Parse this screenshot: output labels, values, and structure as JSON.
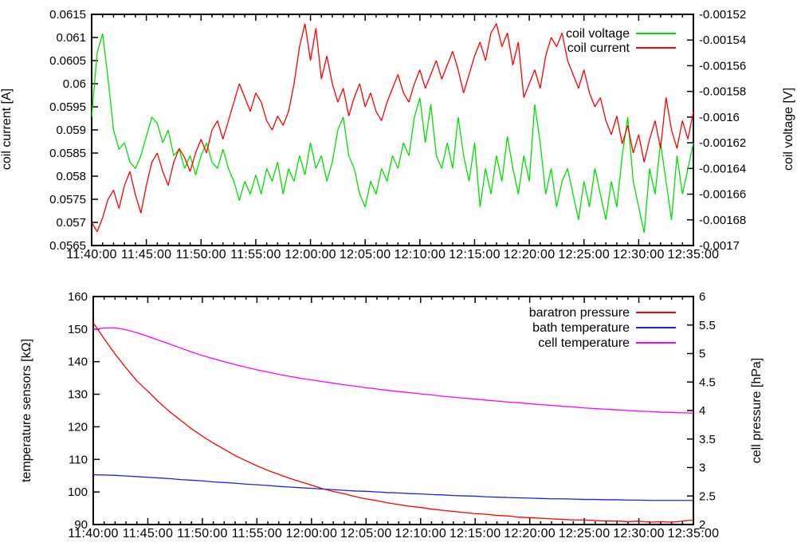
{
  "chart_data": [
    {
      "type": "line",
      "position": "top",
      "title": "",
      "background": "#ffffff",
      "axis_color": "#000000",
      "x_axis": {
        "start": "11:40:00",
        "end": "12:35:00",
        "major_interval_min": 5,
        "minor_interval_min": 1,
        "tick_labels": [
          "11:40:00",
          "11:45:00",
          "11:50:00",
          "11:55:00",
          "12:00:00",
          "12:05:00",
          "12:10:00",
          "12:15:00",
          "12:20:00",
          "12:25:00",
          "12:30:00",
          "12:35:00"
        ]
      },
      "y_left": {
        "label": "coil current [A]",
        "range": [
          0.0565,
          0.0615
        ],
        "ticks": [
          0.0565,
          0.057,
          0.0575,
          0.058,
          0.0585,
          0.059,
          0.0595,
          0.06,
          0.0605,
          0.061,
          0.0615
        ],
        "tick_labels": [
          "0.0565",
          "0.057",
          "0.0575",
          "0.058",
          "0.0585",
          "0.059",
          "0.0595",
          "0.06",
          "0.0605",
          "0.061",
          "0.0615"
        ]
      },
      "y_right": {
        "label": "coil voltage [V]",
        "range": [
          -0.0017,
          -0.00152
        ],
        "ticks": [
          -0.0017,
          -0.00168,
          -0.00166,
          -0.00164,
          -0.00162,
          -0.0016,
          -0.00158,
          -0.00156,
          -0.00154,
          -0.00152
        ],
        "tick_labels": [
          "-0.0017",
          "-0.00168",
          "-0.00166",
          "-0.00164",
          "-0.00162",
          "-0.0016",
          "-0.00158",
          "-0.00156",
          "-0.00154",
          "-0.00152"
        ]
      },
      "legend": {
        "position": "top-right",
        "entries": [
          {
            "label": "coil voltage",
            "color": "#00e000"
          },
          {
            "label": "coil current",
            "color": "#ff0000"
          }
        ]
      },
      "series": [
        {
          "name": "coil voltage",
          "axis": "right",
          "color": "#00e000",
          "sample_interval_min": 0.5,
          "values": [
            -0.0016,
            -0.00155,
            -0.001535,
            -0.00157,
            -0.00161,
            -0.001625,
            -0.00162,
            -0.001635,
            -0.00164,
            -0.00163,
            -0.001615,
            -0.0016,
            -0.001605,
            -0.00162,
            -0.00161,
            -0.00163,
            -0.001625,
            -0.00164,
            -0.00163,
            -0.001645,
            -0.00163,
            -0.00162,
            -0.001635,
            -0.00164,
            -0.001625,
            -0.00164,
            -0.00165,
            -0.001665,
            -0.00165,
            -0.00166,
            -0.001645,
            -0.00166,
            -0.00164,
            -0.00165,
            -0.001635,
            -0.00166,
            -0.00164,
            -0.00165,
            -0.00163,
            -0.001645,
            -0.00162,
            -0.00164,
            -0.00163,
            -0.00165,
            -0.001635,
            -0.00161,
            -0.0016,
            -0.00163,
            -0.00164,
            -0.00166,
            -0.00167,
            -0.00165,
            -0.00166,
            -0.00164,
            -0.00165,
            -0.00163,
            -0.00164,
            -0.00162,
            -0.00163,
            -0.0016,
            -0.001585,
            -0.00162,
            -0.00159,
            -0.00163,
            -0.00164,
            -0.00162,
            -0.00164,
            -0.0016,
            -0.00163,
            -0.00165,
            -0.00162,
            -0.00167,
            -0.00164,
            -0.00166,
            -0.00163,
            -0.00165,
            -0.001615,
            -0.00164,
            -0.00166,
            -0.00163,
            -0.00165,
            -0.00159,
            -0.00162,
            -0.00166,
            -0.00164,
            -0.00167,
            -0.00165,
            -0.00164,
            -0.00166,
            -0.00168,
            -0.00165,
            -0.00167,
            -0.00164,
            -0.00166,
            -0.00168,
            -0.00165,
            -0.00167,
            -0.00163,
            -0.0016,
            -0.00165,
            -0.00167,
            -0.00169,
            -0.00164,
            -0.00166,
            -0.00162,
            -0.00165,
            -0.00168,
            -0.00163,
            -0.00166,
            -0.00164,
            -0.00162
          ]
        },
        {
          "name": "coil current",
          "axis": "left",
          "color": "#ff0000",
          "sample_interval_min": 0.5,
          "values": [
            0.057,
            0.0568,
            0.0571,
            0.0575,
            0.0577,
            0.0573,
            0.0578,
            0.0581,
            0.0576,
            0.0572,
            0.0578,
            0.0583,
            0.0585,
            0.0581,
            0.0578,
            0.0583,
            0.0586,
            0.0584,
            0.0581,
            0.0585,
            0.0588,
            0.0585,
            0.059,
            0.0592,
            0.0588,
            0.0592,
            0.0596,
            0.06,
            0.0597,
            0.0594,
            0.0598,
            0.0596,
            0.0592,
            0.059,
            0.0593,
            0.0591,
            0.0594,
            0.06,
            0.0608,
            0.0613,
            0.0605,
            0.0612,
            0.0601,
            0.0606,
            0.06,
            0.0596,
            0.0599,
            0.0593,
            0.0597,
            0.06,
            0.0595,
            0.0598,
            0.0594,
            0.0592,
            0.0596,
            0.0599,
            0.0602,
            0.0598,
            0.0596,
            0.06,
            0.0603,
            0.0599,
            0.0602,
            0.0605,
            0.0601,
            0.0604,
            0.0607,
            0.0603,
            0.0598,
            0.0602,
            0.0606,
            0.0609,
            0.0605,
            0.0611,
            0.0613,
            0.0608,
            0.0611,
            0.0604,
            0.0609,
            0.0597,
            0.06,
            0.0603,
            0.0599,
            0.0606,
            0.061,
            0.0608,
            0.0611,
            0.0605,
            0.0602,
            0.0599,
            0.0603,
            0.0598,
            0.0595,
            0.0597,
            0.0592,
            0.0589,
            0.0593,
            0.0587,
            0.0591,
            0.0585,
            0.0589,
            0.0583,
            0.0588,
            0.0592,
            0.0586,
            0.0597,
            0.059,
            0.0586,
            0.0592,
            0.0588,
            0.0594
          ]
        }
      ]
    },
    {
      "type": "line",
      "position": "bottom",
      "title": "",
      "background": "#ffffff",
      "axis_color": "#000000",
      "x_axis": {
        "start": "11:40:00",
        "end": "12:35:00",
        "major_interval_min": 5,
        "minor_interval_min": 1,
        "tick_labels": [
          "11:40:00",
          "11:45:00",
          "11:50:00",
          "11:55:00",
          "12:00:00",
          "12:05:00",
          "12:10:00",
          "12:15:00",
          "12:20:00",
          "12:25:00",
          "12:30:00",
          "12:35:00"
        ]
      },
      "y_left": {
        "label": "temperature sensors [kΩ]",
        "range": [
          90,
          160
        ],
        "ticks": [
          90,
          100,
          110,
          120,
          130,
          140,
          150,
          160
        ],
        "tick_labels": [
          "90",
          "100",
          "110",
          "120",
          "130",
          "140",
          "150",
          "160"
        ]
      },
      "y_right": {
        "label": "cell pressure [hPa]",
        "range": [
          2,
          6
        ],
        "ticks": [
          2,
          2.5,
          3,
          3.5,
          4,
          4.5,
          5,
          5.5,
          6
        ],
        "tick_labels": [
          "2",
          "2.5",
          "3",
          "3.5",
          "4",
          "4.5",
          "5",
          "5.5",
          "6"
        ]
      },
      "legend": {
        "position": "top-right",
        "entries": [
          {
            "label": "baratron pressure",
            "color": "#ff0000"
          },
          {
            "label": "bath temperature",
            "color": "#2020e0"
          },
          {
            "label": "cell temperature",
            "color": "#ff00ff"
          }
        ]
      },
      "series": [
        {
          "name": "baratron pressure",
          "axis": "right",
          "color": "#ff0000",
          "sample_interval_min": 1,
          "values": [
            5.54,
            5.26,
            4.99,
            4.75,
            4.52,
            4.34,
            4.15,
            3.98,
            3.83,
            3.68,
            3.55,
            3.43,
            3.32,
            3.21,
            3.12,
            3.03,
            2.95,
            2.88,
            2.81,
            2.75,
            2.69,
            2.63,
            2.58,
            2.54,
            2.49,
            2.45,
            2.42,
            2.38,
            2.35,
            2.32,
            2.3,
            2.27,
            2.25,
            2.23,
            2.21,
            2.19,
            2.18,
            2.16,
            2.15,
            2.13,
            2.12,
            2.11,
            2.1,
            2.09,
            2.08,
            2.08,
            2.07,
            2.06,
            2.06,
            2.05,
            2.06,
            2.04,
            2.05,
            2.04,
            2.06,
            2.08
          ]
        },
        {
          "name": "bath temperature",
          "axis": "left",
          "color": "#2020e0",
          "sample_interval_min": 1,
          "values": [
            105.3,
            105.2,
            105.1,
            104.9,
            104.7,
            104.5,
            104.3,
            104.1,
            103.8,
            103.6,
            103.4,
            103.1,
            102.9,
            102.7,
            102.4,
            102.2,
            102.0,
            101.7,
            101.5,
            101.3,
            101.1,
            100.9,
            100.7,
            100.5,
            100.3,
            100.2,
            100.0,
            99.8,
            99.7,
            99.5,
            99.4,
            99.2,
            99.1,
            98.9,
            98.8,
            98.7,
            98.5,
            98.4,
            98.3,
            98.2,
            98.1,
            98.0,
            97.9,
            97.9,
            97.8,
            97.7,
            97.7,
            97.6,
            97.6,
            97.5,
            97.5,
            97.4,
            97.4,
            97.4,
            97.4,
            97.4
          ]
        },
        {
          "name": "cell temperature",
          "axis": "left",
          "color": "#ff00ff",
          "sample_interval_min": 1,
          "values": [
            150.0,
            150.3,
            150.4,
            149.8,
            148.9,
            147.8,
            146.6,
            145.4,
            144.2,
            143.0,
            141.9,
            140.9,
            140.0,
            139.1,
            138.3,
            137.5,
            136.8,
            136.1,
            135.5,
            134.9,
            134.4,
            133.9,
            133.4,
            132.9,
            132.5,
            132.0,
            131.6,
            131.2,
            130.8,
            130.5,
            130.1,
            129.8,
            129.4,
            129.1,
            128.8,
            128.5,
            128.2,
            127.9,
            127.6,
            127.4,
            127.1,
            126.8,
            126.6,
            126.3,
            126.1,
            125.8,
            125.6,
            125.4,
            125.2,
            125.0,
            124.8,
            124.7,
            124.5,
            124.4,
            124.3,
            124.2
          ]
        }
      ]
    }
  ]
}
